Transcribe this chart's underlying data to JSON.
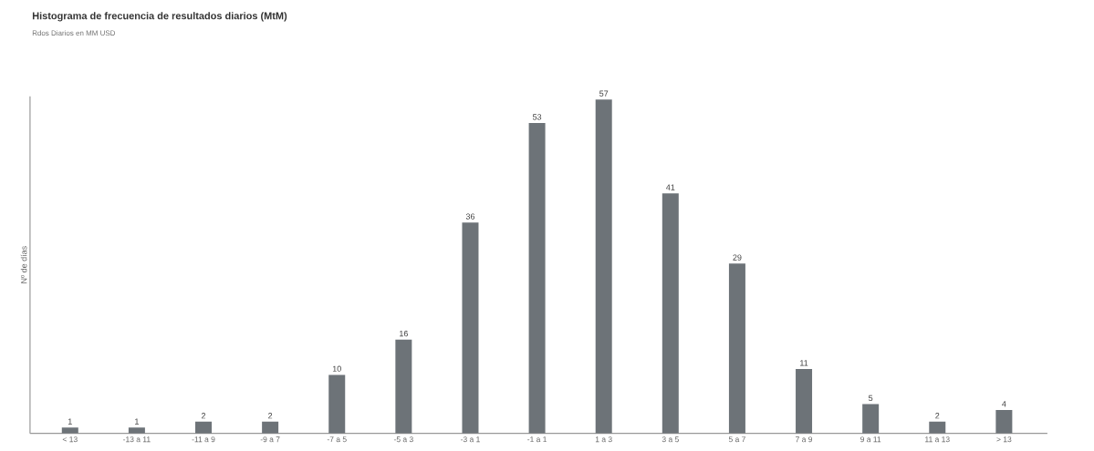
{
  "chart_data": {
    "type": "bar",
    "title": "Histograma de frecuencia de resultados diarios (MtM)",
    "subtitle": "Rdos Diarios en MM USD",
    "ylabel": "Nº de días",
    "categories": [
      "< 13",
      "-13 a 11",
      "-11 a 9",
      "-9 a 7",
      "-7 a 5",
      "-5 a 3",
      "-3 a 1",
      "-1 a 1",
      "1 a 3",
      "3 a 5",
      "5 a 7",
      "7 a 9",
      "9 a 11",
      "11 a 13",
      "> 13"
    ],
    "values": [
      1,
      1,
      2,
      2,
      10,
      16,
      36,
      53,
      57,
      41,
      29,
      11,
      5,
      2,
      4
    ],
    "color": "#6d7378",
    "data_labels": true
  }
}
